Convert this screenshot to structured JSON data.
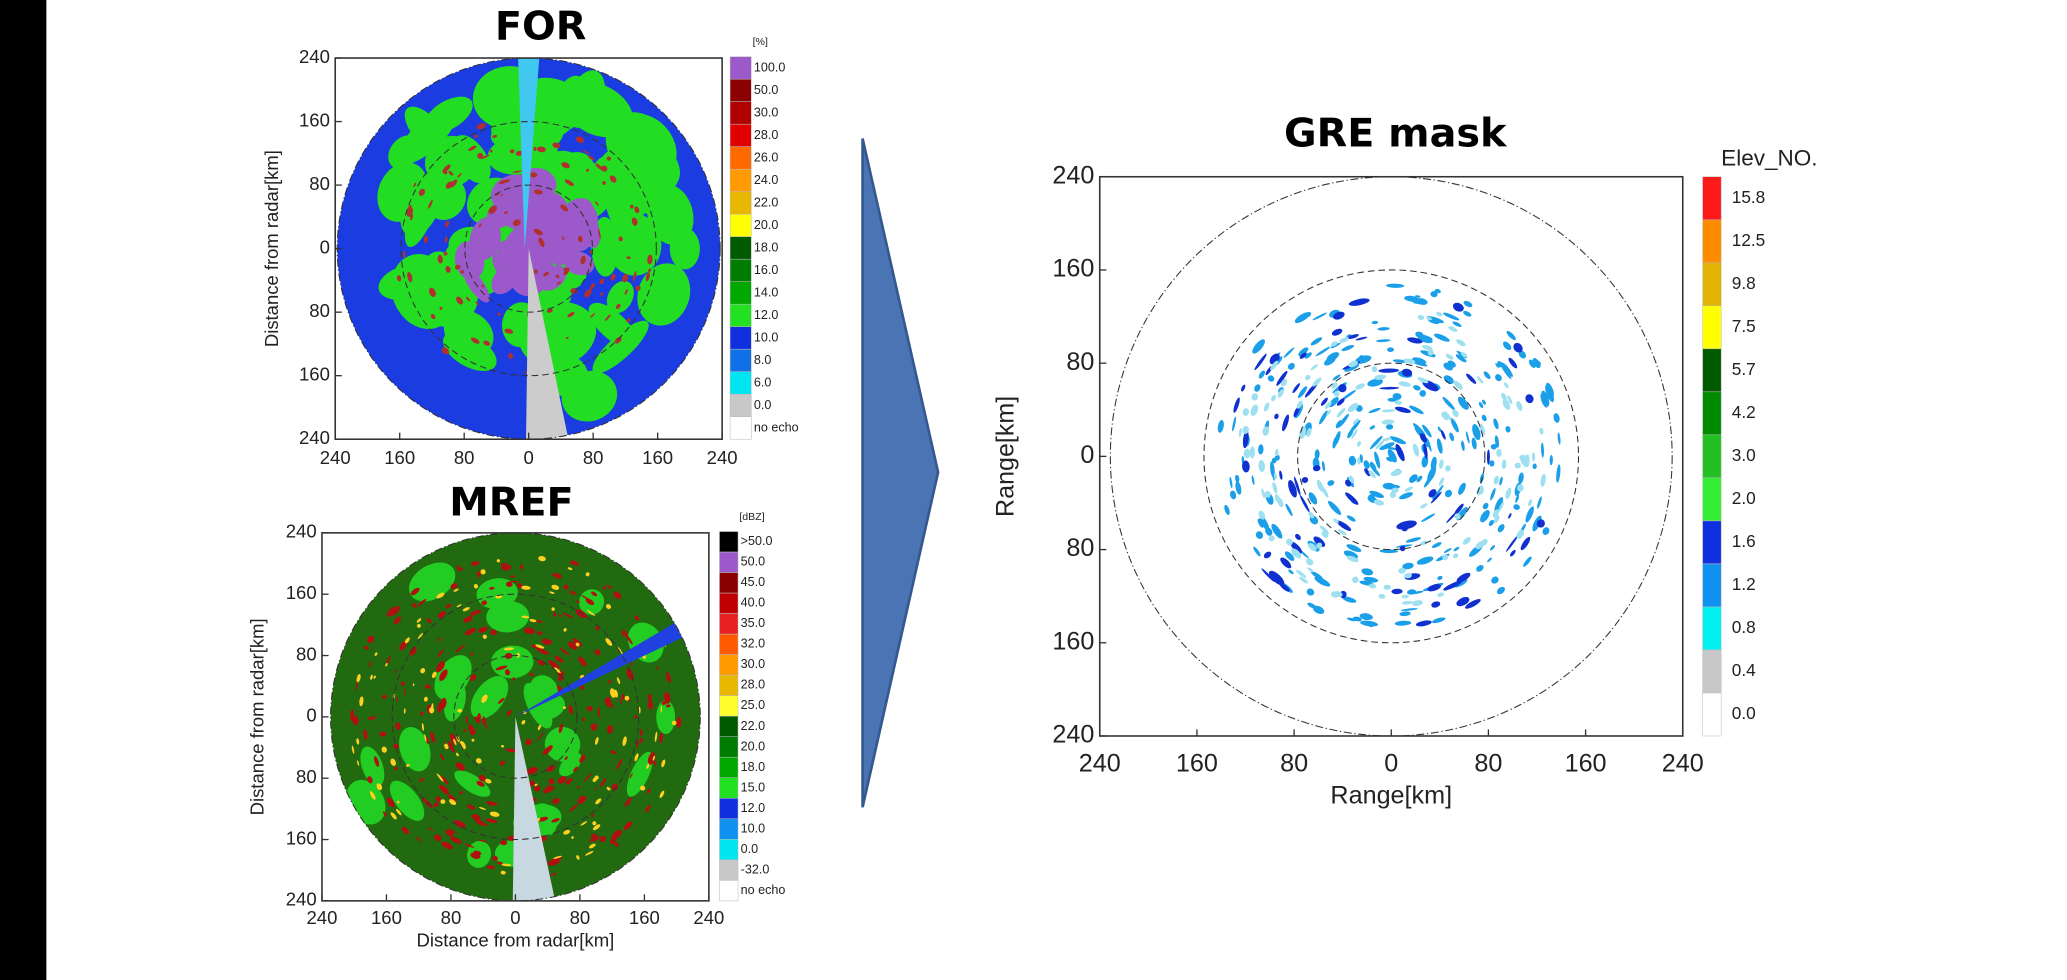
{
  "panels": [
    {
      "title": "FOR",
      "y_axis_label": "Distance from radar[km]",
      "y_ticks": [
        "240",
        "160",
        "80",
        "0",
        "80",
        "160",
        "240"
      ],
      "x_ticks": [
        "240",
        "160",
        "80",
        "0",
        "80",
        "160",
        "240"
      ],
      "colorbar": {
        "unit": "[%]",
        "labels": [
          "100.0",
          "50.0",
          "30.0",
          "28.0",
          "26.0",
          "24.0",
          "22.0",
          "20.0",
          "18.0",
          "16.0",
          "14.0",
          "12.0",
          "10.0",
          "8.0",
          "6.0",
          "0.0",
          "no echo"
        ],
        "colors": [
          "#9b59c9",
          "#8b0000",
          "#b00000",
          "#e00000",
          "#ff6a00",
          "#ff9a00",
          "#e8b800",
          "#ffff00",
          "#005a00",
          "#007d00",
          "#00a800",
          "#22e022",
          "#1030e0",
          "#1070e8",
          "#00e6f0",
          "#c8c8c8",
          "#ffffff"
        ]
      }
    },
    {
      "title": "MREF",
      "y_axis_label": "Distance from radar[km]",
      "x_axis_label": "Distance from radar[km]",
      "y_ticks": [
        "240",
        "160",
        "80",
        "0",
        "80",
        "160",
        "240"
      ],
      "x_ticks": [
        "240",
        "160",
        "80",
        "0",
        "80",
        "160",
        "240"
      ],
      "colorbar": {
        "unit": "[dBZ]",
        "labels": [
          ">50.0",
          "50.0",
          "45.0",
          "40.0",
          "35.0",
          "32.0",
          "30.0",
          "28.0",
          "25.0",
          "22.0",
          "20.0",
          "18.0",
          "15.0",
          "12.0",
          "10.0",
          "0.0",
          "-32.0",
          "no echo"
        ],
        "colors": [
          "#000000",
          "#9b59c9",
          "#8b0000",
          "#c00000",
          "#e82020",
          "#ff5a00",
          "#ff9a00",
          "#e8b800",
          "#ffff30",
          "#005a00",
          "#007d00",
          "#00a800",
          "#22e022",
          "#1030e0",
          "#1090f0",
          "#00e6f0",
          "#c8c8c8",
          "#ffffff"
        ]
      }
    },
    {
      "title": "GRE mask",
      "y_axis_label": "Range[km]",
      "x_axis_label": "Range[km]",
      "y_ticks": [
        "240",
        "160",
        "80",
        "0",
        "80",
        "160",
        "240"
      ],
      "x_ticks": [
        "240",
        "160",
        "80",
        "0",
        "80",
        "160",
        "240"
      ],
      "colorbar": {
        "unit": "Elev_NO.",
        "labels": [
          "15.8",
          "12.5",
          "9.8",
          "7.5",
          "5.7",
          "4.2",
          "3.0",
          "2.0",
          "1.6",
          "1.2",
          "0.8",
          "0.4",
          "0.0"
        ],
        "colors": [
          "#ff1a1a",
          "#ff8c00",
          "#e0b400",
          "#ffff00",
          "#005a00",
          "#008a00",
          "#22c022",
          "#33ee33",
          "#1030e0",
          "#1090f0",
          "#00f0f0",
          "#c8c8c8",
          "#ffffff"
        ]
      }
    }
  ]
}
